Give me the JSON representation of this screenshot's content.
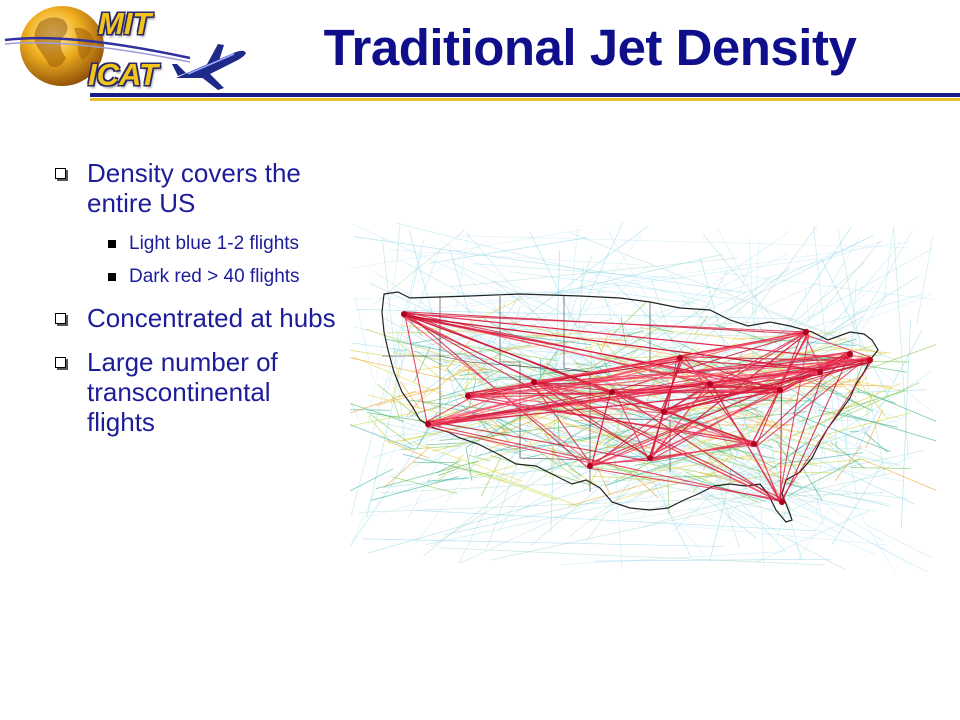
{
  "logo": {
    "line1": "MIT",
    "line2": "ICAT"
  },
  "slide": {
    "title": "Traditional Jet Density"
  },
  "bullets": [
    {
      "text": "Density covers the entire US"
    },
    {
      "text": "Light blue 1-2 flights"
    },
    {
      "text": "Dark red > 40 flights"
    },
    {
      "text": "Concentrated at hubs"
    },
    {
      "text": "Large number of transcontinental flights"
    }
  ],
  "map": {
    "caption": ""
  },
  "colors": {
    "title": "#0f0f8c",
    "bullet_text": "#1d1d9a",
    "rule_navy": "#1b1b86",
    "rule_gold": "#e6c02a",
    "low_density": "#7fd0e6",
    "high_density": "#d81b3c"
  },
  "icons": [
    "globe-icon",
    "airplane-icon",
    "checkbox-bullet-icon",
    "square-bullet-icon"
  ]
}
